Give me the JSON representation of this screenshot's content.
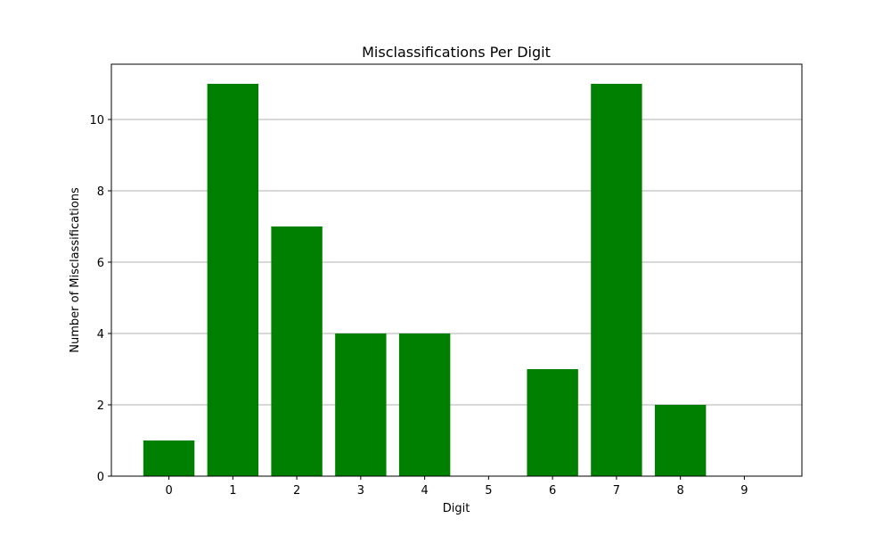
{
  "chart_data": {
    "type": "bar",
    "title": "Misclassifications Per Digit",
    "xlabel": "Digit",
    "ylabel": "Number of Misclassifications",
    "categories": [
      "0",
      "1",
      "2",
      "3",
      "4",
      "5",
      "6",
      "7",
      "8",
      "9"
    ],
    "values": [
      1,
      11,
      7,
      4,
      4,
      0,
      3,
      11,
      2,
      0
    ],
    "ylim": [
      0,
      11.55
    ],
    "yticks": [
      "0",
      "2",
      "4",
      "6",
      "8",
      "10"
    ],
    "grid": "y",
    "bar_color": "#008000",
    "grid_color": "#b0b0b0"
  }
}
